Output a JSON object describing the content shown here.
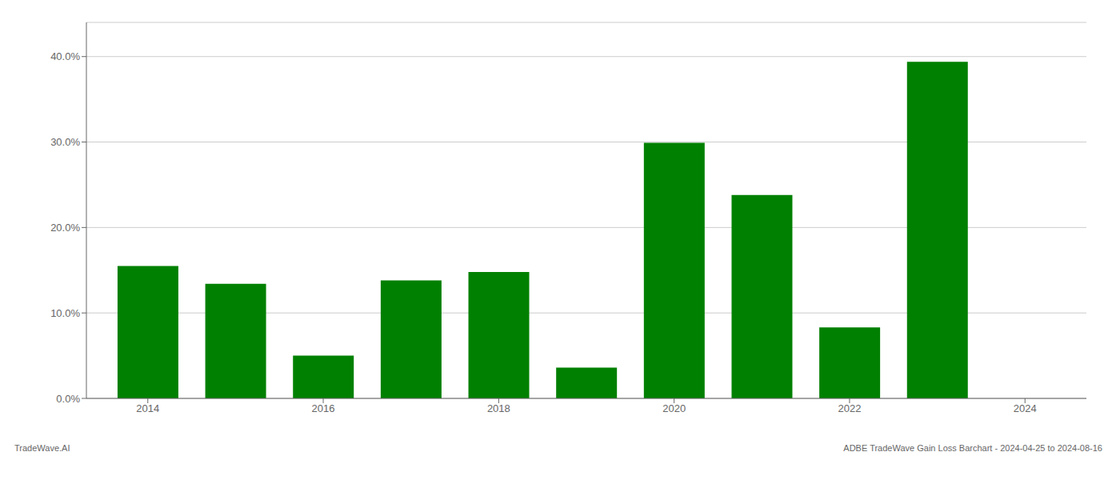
{
  "chart_data": {
    "type": "bar",
    "x": [
      2014,
      2015,
      2016,
      2017,
      2018,
      2019,
      2020,
      2021,
      2022,
      2023
    ],
    "values": [
      0.155,
      0.134,
      0.05,
      0.138,
      0.148,
      0.036,
      0.299,
      0.238,
      0.083,
      0.394
    ],
    "color": "#008000",
    "xlim": [
      2013.3,
      2024.7
    ],
    "xticks": [
      2014,
      2016,
      2018,
      2020,
      2022,
      2024
    ],
    "ylim": [
      0,
      0.44
    ],
    "yticks": [
      {
        "value": 0.0,
        "label": "0.0%"
      },
      {
        "value": 0.1,
        "label": "10.0%"
      },
      {
        "value": 0.2,
        "label": "20.0%"
      },
      {
        "value": 0.3,
        "label": "30.0%"
      },
      {
        "value": 0.4,
        "label": "40.0%"
      }
    ],
    "grid": true,
    "annotations": [
      "TradeWave.AI",
      "ADBE TradeWave Gain Loss Barchart - 2024-04-25 to 2024-08-16"
    ]
  }
}
